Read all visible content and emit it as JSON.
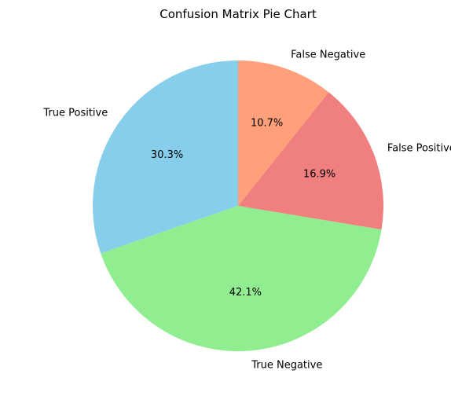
{
  "chart_data": {
    "type": "pie",
    "title": "Confusion Matrix Pie Chart",
    "start_angle_deg": 90,
    "direction": "counterclockwise",
    "slices": [
      {
        "label": "True Positive",
        "value": 30.3,
        "percent_label": "30.3%",
        "color": "#87CEEB"
      },
      {
        "label": "True Negative",
        "value": 42.1,
        "percent_label": "42.1%",
        "color": "#90EE90"
      },
      {
        "label": "False Positive",
        "value": 16.9,
        "percent_label": "16.9%",
        "color": "#F08080"
      },
      {
        "label": "False Negative",
        "value": 10.7,
        "percent_label": "10.7%",
        "color": "#FFA07A"
      }
    ]
  }
}
